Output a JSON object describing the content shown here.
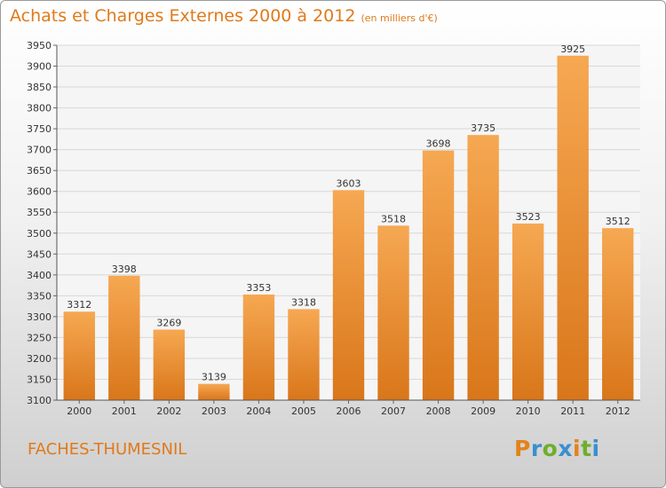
{
  "header": {
    "title": "Achats et Charges Externes 2000 à 2012",
    "unit_note": "(en milliers d'€)"
  },
  "footer": {
    "city": "FACHES-THUMESNIL",
    "logo_text": "Proxiti",
    "logo_colors": [
      "#e2831c",
      "#3a8fcf",
      "#6fae2c",
      "#3a8fcf",
      "#e2831c",
      "#6fae2c",
      "#3a8fcf"
    ]
  },
  "colors": {
    "accent": "#e07a1a",
    "bar_light": "#f6a852",
    "bar_dark": "#d9761a"
  },
  "chart_data": {
    "type": "bar",
    "title": "Achats et Charges Externes 2000 à 2012",
    "subtitle": "(en milliers d'€)",
    "xlabel": "",
    "ylabel": "",
    "categories": [
      "2000",
      "2001",
      "2002",
      "2003",
      "2004",
      "2005",
      "2006",
      "2007",
      "2008",
      "2009",
      "2010",
      "2011",
      "2012"
    ],
    "values": [
      3312,
      3398,
      3269,
      3139,
      3353,
      3318,
      3603,
      3518,
      3698,
      3735,
      3523,
      3925,
      3512
    ],
    "ylim": [
      3100,
      3950
    ],
    "ytick_step": 50,
    "grid": true,
    "legend": "none"
  }
}
